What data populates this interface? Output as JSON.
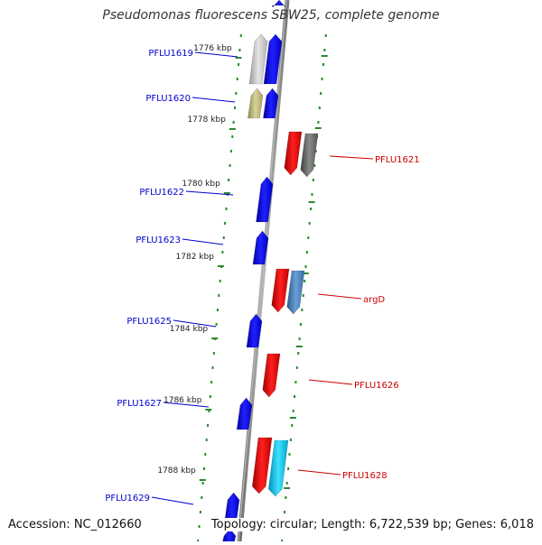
{
  "title": "Pseudomonas fluorescens SBW25, complete genome",
  "footer": {
    "accession": "Accession: NC_012660",
    "summary": "Topology: circular; Length: 6,722,539 bp; Genes: 6,018"
  },
  "colors": {
    "forward_gene": "#1010e8",
    "reverse_gene": "#e81010",
    "forward_label": "#0000cc",
    "reverse_label": "#cc0000",
    "backbone": "#909090",
    "tick": "#2a8a2a"
  },
  "scale_labels": [
    "1776 kbp",
    "1778 kbp",
    "1780 kbp",
    "1782 kbp",
    "1784 kbp",
    "1786 kbp",
    "1788 kbp"
  ],
  "forward_genes": [
    "PFLU1619",
    "PFLU1620",
    "PFLU1622",
    "PFLU1623",
    "PFLU1625",
    "PFLU1627",
    "PFLU1629"
  ],
  "reverse_genes": [
    "PFLU1621",
    "argD",
    "PFLU1626",
    "PFLU1628"
  ]
}
